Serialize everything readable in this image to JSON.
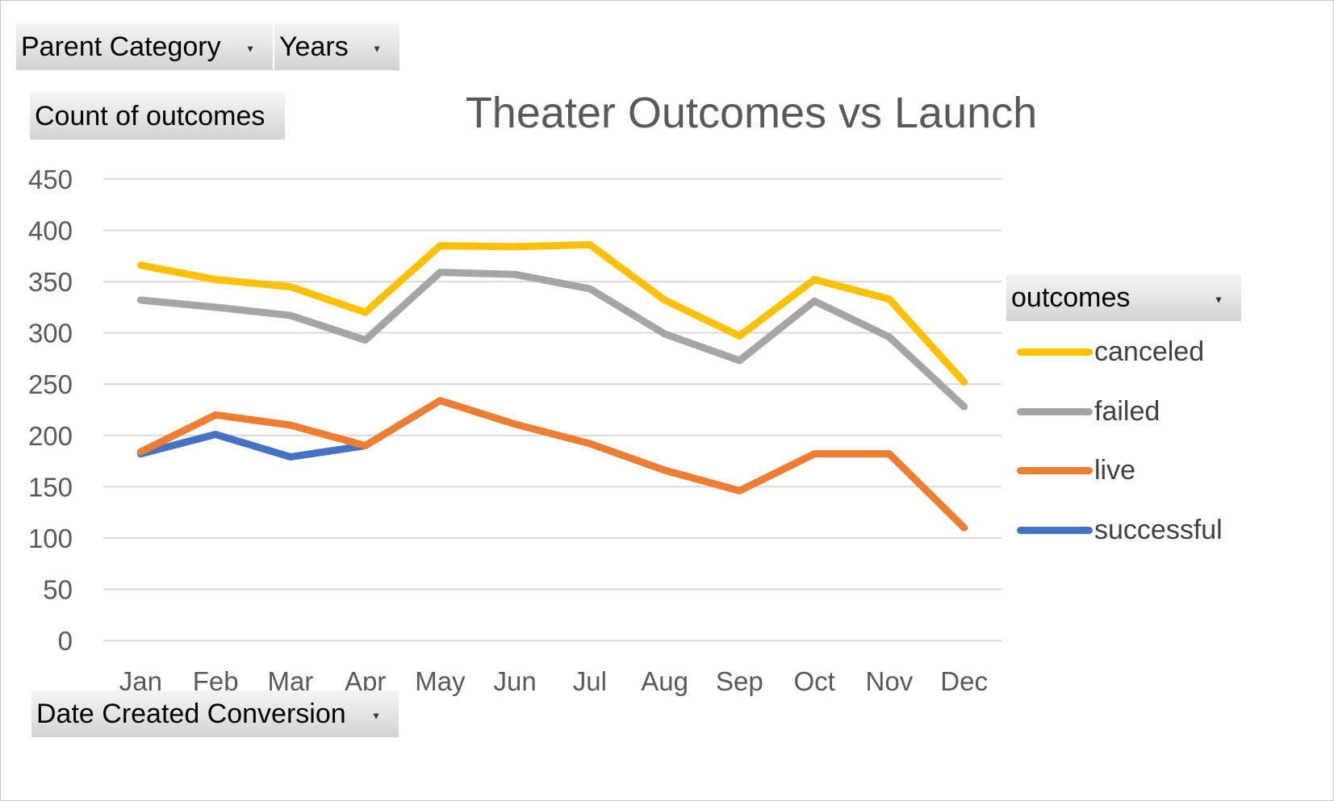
{
  "filters": {
    "parent_category": "Parent Category",
    "years": "Years",
    "date_created": "Date Created Conversion",
    "outcomes": "outcomes"
  },
  "value_field": "Count of outcomes",
  "colors": {
    "canceled": "#ffc000",
    "failed": "#a5a5a5",
    "live": "#ed7d31",
    "successful": "#4472c4",
    "grid": "#d9d9d9",
    "tick_text": "#595959"
  },
  "icons": {
    "dropdown": "dropdown-arrow-icon"
  },
  "chart_data": {
    "type": "line",
    "title": "Theater Outcomes vs Launch",
    "xlabel": "",
    "ylabel": "",
    "categories": [
      "Jan",
      "Feb",
      "Mar",
      "Apr",
      "May",
      "Jun",
      "Jul",
      "Aug",
      "Sep",
      "Oct",
      "Nov",
      "Dec"
    ],
    "yticks": [
      "0",
      "50",
      "100",
      "150",
      "200",
      "250",
      "300",
      "350",
      "400",
      "450"
    ],
    "ylim": [
      0,
      450
    ],
    "grid": true,
    "legend_position": "right",
    "series": [
      {
        "name": "canceled",
        "values": [
          366,
          352,
          345,
          320,
          385,
          384,
          386,
          332,
          297,
          352,
          333,
          252
        ]
      },
      {
        "name": "failed",
        "values": [
          332,
          325,
          317,
          293,
          359,
          357,
          343,
          299,
          273,
          331,
          296,
          228
        ]
      },
      {
        "name": "live",
        "values": [
          184,
          220,
          210,
          190,
          234,
          211,
          192,
          166,
          146,
          182,
          182,
          110
        ]
      },
      {
        "name": "successful",
        "values": [
          182,
          201,
          179,
          190,
          null,
          null,
          null,
          null,
          null,
          null,
          null,
          null
        ]
      }
    ]
  }
}
